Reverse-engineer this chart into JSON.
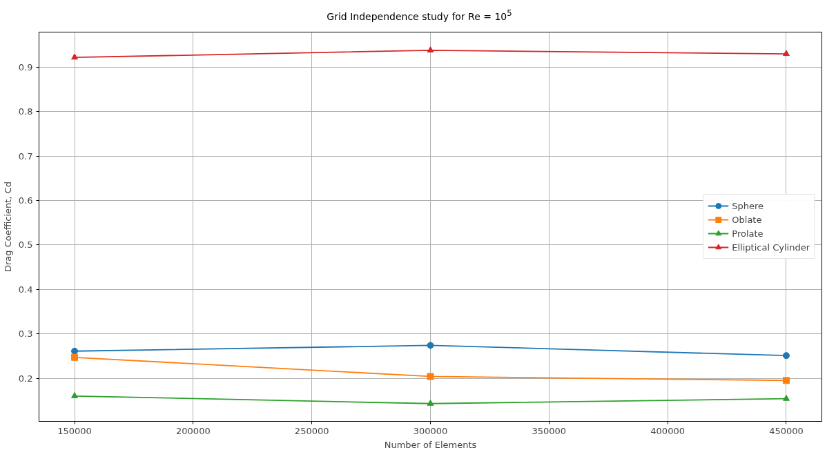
{
  "chart_data": {
    "type": "line",
    "title": "Grid Independence study for Re = 10$^{5}$",
    "xlabel": "Number of Elements",
    "ylabel": "Drag Coefficient, Cd",
    "x": [
      150000,
      300000,
      450000
    ],
    "xlim": [
      135000,
      465000
    ],
    "xticks": [
      150000,
      200000,
      250000,
      300000,
      350000,
      400000,
      450000
    ],
    "ylim": [
      0.103,
      0.979
    ],
    "yticks": [
      0.2,
      0.3,
      0.4,
      0.5,
      0.6,
      0.7,
      0.8,
      0.9
    ],
    "grid": true,
    "legend": "right",
    "line_style": "solid",
    "series": [
      {
        "name": "Sphere",
        "color": "#1f77b4",
        "marker": "circle",
        "values": [
          0.261,
          0.274,
          0.251
        ]
      },
      {
        "name": "Oblate",
        "color": "#ff7f0e",
        "marker": "square",
        "values": [
          0.247,
          0.204,
          0.195
        ]
      },
      {
        "name": "Prolate",
        "color": "#2ca02c",
        "marker": "triangle",
        "values": [
          0.16,
          0.143,
          0.154
        ]
      },
      {
        "name": "Elliptical Cylinder",
        "color": "#d62728",
        "marker": "triangle",
        "values": [
          0.922,
          0.938,
          0.93
        ]
      }
    ]
  }
}
